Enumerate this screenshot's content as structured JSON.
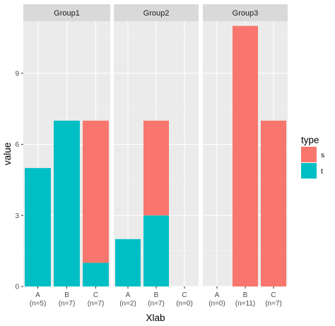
{
  "chart_data": {
    "type": "bar",
    "stacked": true,
    "facet_by": "group",
    "xlabel": "Xlab",
    "ylabel": "value",
    "ylim": [
      0,
      11.2
    ],
    "yticks": [
      0,
      3,
      6,
      9
    ],
    "grid": true,
    "legend": {
      "title": "type",
      "position": "right",
      "entries": [
        {
          "name": "s",
          "color": "#F8766D"
        },
        {
          "name": "t",
          "color": "#00BFC4"
        }
      ]
    },
    "categories": [
      "A",
      "B",
      "C"
    ],
    "panels": [
      {
        "name": "Group1",
        "x_labels": [
          "(n=5)",
          "(n=7)",
          "(n=7)"
        ],
        "series": [
          {
            "name": "t",
            "values": [
              5,
              7,
              1
            ]
          },
          {
            "name": "s",
            "values": [
              0,
              0,
              6
            ]
          }
        ]
      },
      {
        "name": "Group2",
        "x_labels": [
          "(n=2)",
          "(n=7)",
          "(n=0)"
        ],
        "series": [
          {
            "name": "t",
            "values": [
              2,
              3,
              0
            ]
          },
          {
            "name": "s",
            "values": [
              0,
              4,
              0
            ]
          }
        ]
      },
      {
        "name": "Group3",
        "x_labels": [
          "(n=0)",
          "(n=11)",
          "(n=7)"
        ],
        "series": [
          {
            "name": "t",
            "values": [
              0,
              0,
              0
            ]
          },
          {
            "name": "s",
            "values": [
              0,
              11,
              7
            ]
          }
        ]
      }
    ]
  }
}
